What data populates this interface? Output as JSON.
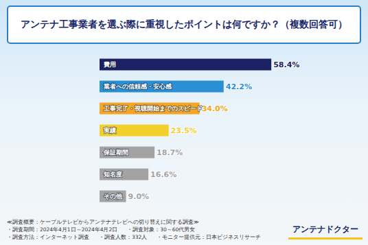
{
  "chart_data": {
    "type": "bar",
    "title": "アンテナ工事業者を選ぶ際に重視したポイントは何ですか？（複数回答可）",
    "orientation": "horizontal",
    "categories": [
      "費用",
      "業者への信頼感・安心感",
      "工事完了・視聴開始までのスピード",
      "実績",
      "保証期間",
      "知名度",
      "その他"
    ],
    "values": [
      58.4,
      42.2,
      34.0,
      23.5,
      18.7,
      16.6,
      9.0
    ],
    "value_labels": [
      "58.4%",
      "42.2%",
      "34.0%",
      "23.5%",
      "18.7%",
      "16.6%",
      "9.0%"
    ],
    "colors": [
      "#1c2163",
      "#2b8fd2",
      "#f5a623",
      "#f2cf2a",
      "#a3a3a3",
      "#a3a3a3",
      "#a3a3a3"
    ],
    "xlim": [
      0,
      60
    ],
    "data_labels": true,
    "tick_labels": "y",
    "grid": false,
    "annotations": [
      "≪調査概要：ケーブルテレビからアンテナテレビへの切り替えに関する調査≫",
      "・調査期間：2024年4月1日～2024年4月2日",
      "・調査対象：30～60代男女",
      "・調査方法：インターネット調査",
      "・調査人数：332人",
      "・モニター提供元：日本ビジネスリサーチ",
      "アンテナドクター"
    ]
  }
}
